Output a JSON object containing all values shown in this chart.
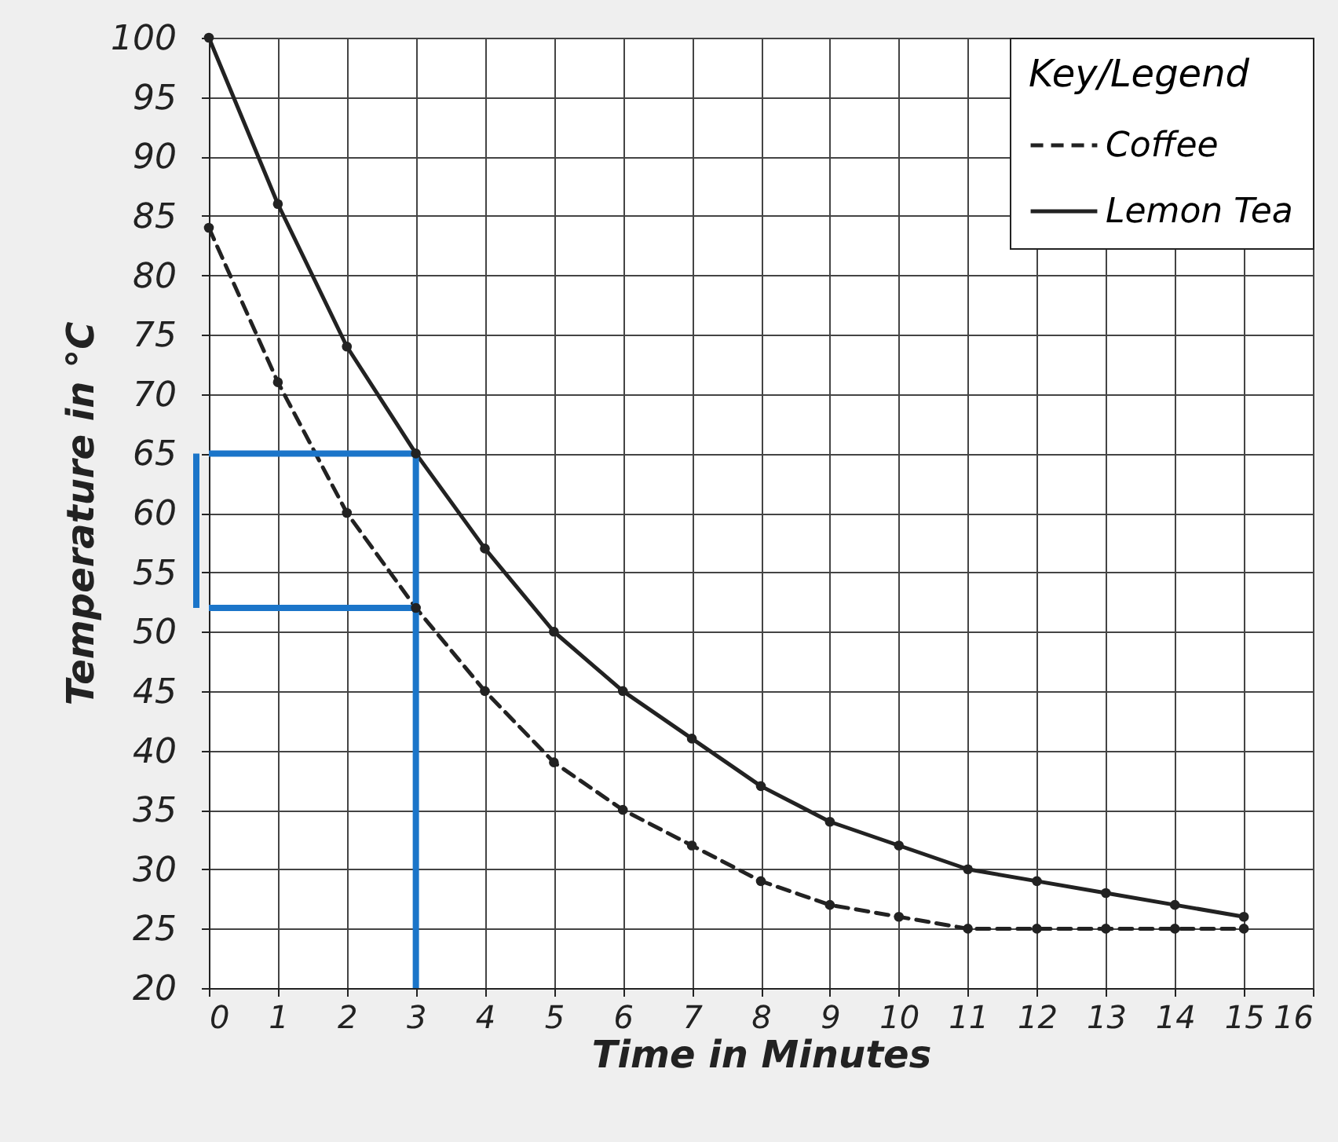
{
  "chart_data": {
    "type": "line",
    "xlabel": "Time in Minutes",
    "ylabel": "Temperature in °C",
    "legend_title": "Key/Legend",
    "x": [
      0,
      1,
      2,
      3,
      4,
      5,
      6,
      7,
      8,
      9,
      10,
      11,
      12,
      13,
      14,
      15
    ],
    "series": [
      {
        "name": "Coffee",
        "color": "#222222",
        "line_style": "dashed",
        "values": [
          84,
          71,
          60,
          52,
          45,
          39,
          35,
          32,
          29,
          27,
          26,
          25,
          25,
          25,
          25,
          25
        ]
      },
      {
        "name": "Lemon Tea",
        "color": "#222222",
        "line_style": "solid",
        "values": [
          100,
          86,
          74,
          65,
          57,
          50,
          45,
          41,
          37,
          34,
          32,
          30,
          29,
          28,
          27,
          26
        ]
      }
    ],
    "xlim": [
      0,
      16
    ],
    "xticks": [
      0,
      1,
      2,
      3,
      4,
      5,
      6,
      7,
      8,
      9,
      10,
      11,
      12,
      13,
      14,
      15,
      16
    ],
    "ylim": [
      20,
      100
    ],
    "yticks": [
      20,
      25,
      30,
      35,
      40,
      45,
      50,
      55,
      60,
      65,
      70,
      75,
      80,
      85,
      90,
      95,
      100
    ],
    "grid": true,
    "legend": "top right",
    "marker": "circle",
    "ref_lines": [
      {
        "axis": "x",
        "value": 3,
        "color": "#1b75c9"
      },
      {
        "axis": "y",
        "value": 65,
        "color": "#1b75c9"
      },
      {
        "axis": "y",
        "value": 52,
        "color": "#1b75c9"
      }
    ]
  }
}
